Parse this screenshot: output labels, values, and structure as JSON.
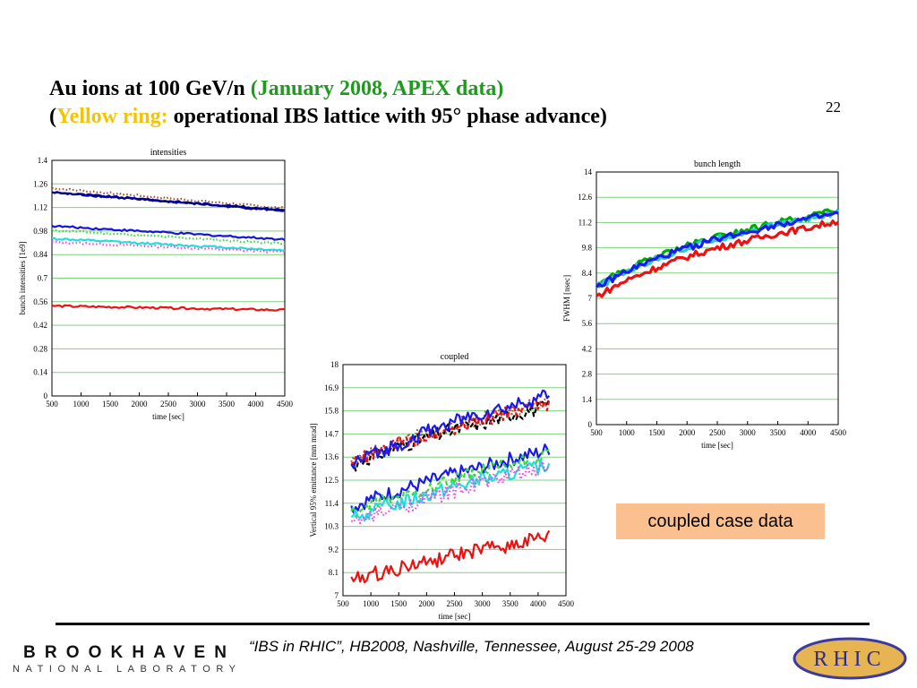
{
  "slide": {
    "title_part1": "Au ions at 100 GeV/n ",
    "title_part2": "(January 2008, APEX data)",
    "title_part3": "(",
    "title_part4": "Yellow ring:",
    "title_part5": " operational IBS lattice with 95° phase advance)",
    "page_number": "22",
    "note": "coupled case data",
    "footer": "“IBS in RHIC”, HB2008, Nashville, Tennessee, August 25-29  2008",
    "logo_left_line1": "BROOKHAVEN",
    "logo_left_line2": "NATIONAL LABORATORY",
    "logo_right": "RHIC"
  },
  "chart_data": [
    {
      "id": "intensities",
      "type": "scatter",
      "title": "intensities",
      "xlabel": "time [sec]",
      "ylabel": "bunch intensities [1e9]",
      "xlim": [
        500,
        4500
      ],
      "ylim": [
        0,
        1.4
      ],
      "xticks": [
        500,
        1000,
        1500,
        2000,
        2500,
        3000,
        3500,
        4000,
        4500
      ],
      "yticks": [
        0,
        0.14,
        0.28,
        0.42,
        0.56,
        0.7,
        0.84,
        0.98,
        1.12,
        1.26,
        1.4
      ],
      "ytick_labels": [
        "0",
        "0.14",
        "0.28",
        "0.42",
        "0.56",
        "0.7",
        "0.84",
        "0.98",
        "1.12",
        "1.26",
        "1.4"
      ],
      "grid": true,
      "series": [
        {
          "color": "#a0522d",
          "style": "dots",
          "x": [
            500,
            4500
          ],
          "y": [
            1.235,
            1.115
          ]
        },
        {
          "color": "#0000cc",
          "style": "line",
          "x": [
            500,
            4500
          ],
          "y": [
            1.21,
            1.1
          ]
        },
        {
          "color": "#00008b",
          "style": "line",
          "x": [
            500,
            4500
          ],
          "y": [
            1.21,
            1.105
          ]
        },
        {
          "color": "#1515dd",
          "style": "line",
          "x": [
            500,
            4500
          ],
          "y": [
            1.01,
            0.93
          ]
        },
        {
          "color": "#33dd33",
          "style": "dots",
          "x": [
            500,
            4500
          ],
          "y": [
            0.985,
            0.905
          ]
        },
        {
          "color": "#22dddd",
          "style": "line",
          "x": [
            500,
            4500
          ],
          "y": [
            0.935,
            0.865
          ]
        },
        {
          "color": "#ee44ee",
          "style": "dots",
          "x": [
            500,
            4500
          ],
          "y": [
            0.915,
            0.855
          ]
        },
        {
          "color": "#ee1111",
          "style": "line",
          "x": [
            500,
            4500
          ],
          "y": [
            0.535,
            0.51
          ]
        }
      ]
    },
    {
      "id": "bunch-length",
      "type": "line",
      "title": "bunch length",
      "xlabel": "time [sec]",
      "ylabel": "FWHM [nsec]",
      "xlim": [
        500,
        4500
      ],
      "ylim": [
        0,
        14
      ],
      "xticks": [
        500,
        1000,
        1500,
        2000,
        2500,
        3000,
        3500,
        4000,
        4500
      ],
      "yticks": [
        0,
        1.4,
        2.8,
        4.2,
        5.6,
        7,
        8.4,
        9.8,
        11.2,
        12.6,
        14
      ],
      "ytick_labels": [
        "0",
        "1.4",
        "2.8",
        "4.2",
        "5.6",
        "7",
        "8.4",
        "9.8",
        "11.2",
        "12.6",
        "14"
      ],
      "grid": true,
      "series": [
        {
          "color": "#00aa00",
          "x": [
            500,
            1000,
            1500,
            2000,
            2500,
            3000,
            3500,
            4000,
            4500
          ],
          "y": [
            7.7,
            8.6,
            9.3,
            9.9,
            10.4,
            10.8,
            11.2,
            11.5,
            11.9
          ]
        },
        {
          "color": "#22cccc",
          "x": [
            500,
            1000,
            1500,
            2000,
            2500,
            3000,
            3500,
            4000,
            4500
          ],
          "y": [
            7.6,
            8.5,
            9.2,
            9.8,
            10.3,
            10.7,
            11.1,
            11.4,
            11.8
          ]
        },
        {
          "color": "#1a1aee",
          "x": [
            500,
            1000,
            1500,
            2000,
            2500,
            3000,
            3500,
            4000,
            4500
          ],
          "y": [
            7.6,
            8.5,
            9.2,
            9.8,
            10.3,
            10.7,
            11.1,
            11.4,
            11.7
          ]
        },
        {
          "color": "#ee1111",
          "x": [
            500,
            1000,
            1500,
            2000,
            2500,
            3000,
            3500,
            4000,
            4500
          ],
          "y": [
            7.1,
            8.0,
            8.7,
            9.3,
            9.8,
            10.2,
            10.6,
            10.9,
            11.3
          ]
        }
      ]
    },
    {
      "id": "coupled",
      "type": "line",
      "title": "coupled",
      "xlabel": "time [sec]",
      "ylabel": "Vertical  95% emittance [mm mrad]",
      "xlim": [
        500,
        4500
      ],
      "ylim": [
        7,
        18
      ],
      "xticks": [
        500,
        1000,
        1500,
        2000,
        2500,
        3000,
        3500,
        4000,
        4500
      ],
      "yticks": [
        7,
        8.1,
        9.2,
        10.3,
        11.4,
        12.5,
        13.6,
        14.7,
        15.8,
        16.9,
        18
      ],
      "ytick_labels": [
        "7",
        "8.1",
        "9.2",
        "10.3",
        "11.4",
        "12.5",
        "13.6",
        "14.7",
        "15.8",
        "16.9",
        "18"
      ],
      "grid": true,
      "series": [
        {
          "color": "#a0522d",
          "style": "dots",
          "x": [
            650,
            1000,
            1500,
            2000,
            2500,
            3000,
            3500,
            4000,
            4200
          ],
          "y": [
            13.4,
            13.8,
            14.3,
            14.7,
            15.1,
            15.4,
            15.8,
            16.2,
            16.4
          ]
        },
        {
          "color": "#000000",
          "style": "dash",
          "x": [
            650,
            1000,
            1500,
            2000,
            2500,
            3000,
            3500,
            4000,
            4200
          ],
          "y": [
            13.2,
            13.6,
            14.1,
            14.5,
            14.9,
            15.2,
            15.6,
            15.9,
            16.0
          ]
        },
        {
          "color": "#ee1111",
          "style": "dash",
          "x": [
            650,
            1000,
            1500,
            2000,
            2500,
            3000,
            3500,
            4000,
            4200
          ],
          "y": [
            13.3,
            13.7,
            14.2,
            14.6,
            15.0,
            15.4,
            15.7,
            16.0,
            16.2
          ]
        },
        {
          "color": "#1a1aee",
          "style": "line",
          "x": [
            650,
            1000,
            1500,
            2000,
            2500,
            3000,
            3500,
            4000,
            4200
          ],
          "y": [
            13.2,
            13.7,
            14.2,
            14.8,
            15.3,
            15.7,
            16.0,
            16.4,
            16.6
          ]
        },
        {
          "color": "#1a1aee",
          "style": "line",
          "x": [
            650,
            1000,
            1500,
            2000,
            2500,
            3000,
            3500,
            4000,
            4200
          ],
          "y": [
            11.2,
            11.6,
            12.0,
            12.4,
            12.8,
            13.1,
            13.5,
            13.8,
            14.0
          ]
        },
        {
          "color": "#33dd33",
          "style": "dash",
          "x": [
            650,
            1000,
            1500,
            2000,
            2500,
            3000,
            3500,
            4000,
            4200
          ],
          "y": [
            10.9,
            11.3,
            11.7,
            12.1,
            12.5,
            12.9,
            13.2,
            13.5,
            13.7
          ]
        },
        {
          "color": "#22dddd",
          "style": "line",
          "x": [
            650,
            1000,
            1500,
            2000,
            2500,
            3000,
            3500,
            4000,
            4200
          ],
          "y": [
            10.6,
            11.0,
            11.4,
            11.8,
            12.2,
            12.5,
            12.8,
            13.1,
            13.3
          ]
        },
        {
          "color": "#ee44ee",
          "style": "dots",
          "x": [
            650,
            1000,
            1500,
            2000,
            2500,
            3000,
            3500,
            4000,
            4200
          ],
          "y": [
            10.4,
            10.8,
            11.2,
            11.6,
            12.0,
            12.4,
            12.7,
            13.0,
            13.2
          ]
        },
        {
          "color": "#ee1111",
          "style": "line",
          "x": [
            650,
            1000,
            1500,
            2000,
            2500,
            3000,
            3500,
            4000,
            4200
          ],
          "y": [
            7.7,
            8.0,
            8.3,
            8.6,
            8.9,
            9.2,
            9.4,
            9.7,
            9.8
          ]
        }
      ]
    }
  ]
}
